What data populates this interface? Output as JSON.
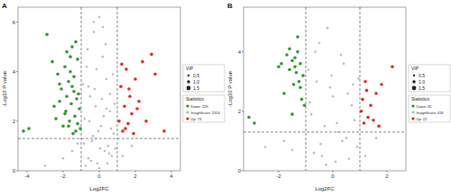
{
  "chart_data": [
    {
      "type": "scatter",
      "panel": "A",
      "x_label": "Log2FC",
      "y_label": "-Log10 P value",
      "grid": false,
      "xlim": [
        -4.5,
        4.5
      ],
      "ylim": [
        0,
        6.6
      ],
      "xticks": [
        -4,
        -2,
        0,
        2,
        4
      ],
      "yticks": [
        0,
        2,
        4,
        6
      ],
      "cutoff_lines": {
        "x": [
          -1,
          1
        ],
        "y": [
          1.3
        ]
      },
      "vip_legend": {
        "title": "VIP",
        "values": [
          0.5,
          {
            "value": 1,
            "label": "1.0"
          },
          1.5
        ]
      },
      "legend_title": "Statistics",
      "series": [
        {
          "name": "Down: 229",
          "color": "#1e8a1e",
          "x": [
            -4.2,
            -3.9,
            -2.9,
            -2.6,
            -2.4,
            -2.3,
            -2.2,
            -2.1,
            -2.0,
            -1.9,
            -1.85,
            -1.8,
            -1.7,
            -1.65,
            -1.6,
            -1.55,
            -1.5,
            -1.45,
            -1.4,
            -1.35,
            -1.3,
            -1.25,
            -1.2,
            -1.15,
            -1.1,
            -1.05,
            -1.8,
            -1.6,
            -1.4,
            -2.5,
            -1.3,
            -1.9,
            -1.2,
            -1.7,
            -2.2,
            -1.5
          ],
          "values": [
            1.6,
            1.7,
            5.5,
            4.4,
            2.1,
            3.9,
            2.8,
            3.3,
            1.8,
            4.2,
            2.4,
            3.0,
            3.6,
            2.0,
            4.0,
            2.7,
            3.4,
            1.5,
            3.8,
            2.2,
            5.2,
            2.9,
            1.9,
            3.1,
            2.5,
            1.7,
            4.8,
            4.6,
            3.2,
            2.6,
            1.6,
            2.3,
            4.5,
            1.8,
            3.5,
            5.0
          ]
        },
        {
          "name": "Insignificant: 2314",
          "color": "#b5b5b5",
          "x": [
            -0.9,
            -0.8,
            -0.7,
            -0.6,
            -0.5,
            -0.4,
            -0.3,
            -0.2,
            -0.1,
            0,
            0.1,
            0.2,
            0.3,
            0.4,
            0.5,
            0.6,
            0.7,
            0.8,
            0.9,
            -0.85,
            -0.65,
            -0.45,
            -0.25,
            -0.05,
            0.15,
            0.35,
            0.55,
            0.75,
            -0.75,
            -0.55,
            -0.35,
            -0.15,
            0.05,
            0.25,
            0.45,
            0.65,
            0.85,
            -1.5,
            -2.0,
            -1.2,
            1.3,
            1.8,
            -3.0,
            -0.3,
            0.2,
            0.6,
            -0.6,
            0.0,
            0.4,
            -0.2
          ],
          "values": [
            3.5,
            2.1,
            4.2,
            0.5,
            3.0,
            1.2,
            5.6,
            2.6,
            0.3,
            6.2,
            1.8,
            4.6,
            0.8,
            3.7,
            1.0,
            2.4,
            0.6,
            1.5,
            0.9,
            1.1,
            4.9,
            0.4,
            3.3,
            1.6,
            2.9,
            5.1,
            0.7,
            3.9,
            0.2,
            2.0,
            1.4,
            4.1,
            0.9,
            2.2,
            0.3,
            1.7,
            2.7,
            0.8,
            0.5,
            1.1,
            0.6,
            1.0,
            0.2,
            6.0,
            5.8,
            3.1,
            3.4,
            0.1,
            2.5,
            1.3
          ]
        },
        {
          "name": "Up: 73",
          "color": "#e01010",
          "x": [
            1.1,
            1.2,
            1.3,
            1.4,
            1.5,
            1.6,
            1.7,
            1.8,
            1.9,
            2.0,
            2.2,
            2.4,
            2.6,
            2.9,
            3.1,
            1.25,
            1.45,
            1.65,
            2.1,
            3.6
          ],
          "values": [
            2.0,
            3.4,
            1.6,
            2.6,
            4.1,
            1.9,
            3.0,
            2.3,
            1.5,
            3.7,
            2.8,
            4.4,
            2.0,
            4.7,
            3.9,
            4.3,
            1.7,
            3.3,
            2.5,
            1.6
          ]
        }
      ]
    },
    {
      "type": "scatter",
      "panel": "B",
      "x_label": "Log2FC",
      "y_label": "-Log10 P value",
      "grid": false,
      "xlim": [
        -3.3,
        2.7
      ],
      "ylim": [
        0,
        5.5
      ],
      "xticks": [
        -2,
        0,
        2
      ],
      "yticks": [
        0,
        2,
        4
      ],
      "cutoff_lines": {
        "x": [
          -1,
          1
        ],
        "y": [
          1.3
        ]
      },
      "vip_legend": {
        "title": "VIP",
        "values": [
          0.5,
          {
            "value": 1,
            "label": "1.0"
          },
          1.5
        ]
      },
      "legend_title": "Statistics",
      "series": [
        {
          "name": "Down: 45",
          "color": "#1e8a1e",
          "x": [
            -3.1,
            -2.9,
            -2.0,
            -1.9,
            -1.8,
            -1.7,
            -1.6,
            -1.5,
            -1.45,
            -1.4,
            -1.35,
            -1.3,
            -1.25,
            -1.2,
            -1.15,
            -1.1,
            -1.05,
            -1.5,
            -1.3,
            -1.2,
            -1.6,
            -1.4
          ],
          "values": [
            1.8,
            1.6,
            3.5,
            3.6,
            2.6,
            3.9,
            4.1,
            3.7,
            2.9,
            3.8,
            3.3,
            4.5,
            3.0,
            3.6,
            2.4,
            3.2,
            2.2,
            1.9,
            4.0,
            2.8,
            3.4,
            3.5
          ]
        },
        {
          "name": "Insignificant: 418",
          "color": "#b5b5b5",
          "x": [
            -0.9,
            -0.7,
            -0.5,
            -0.3,
            -0.1,
            0.1,
            0.3,
            0.5,
            0.7,
            0.9,
            -0.8,
            -0.6,
            -0.4,
            -0.2,
            0,
            0.2,
            0.4,
            0.6,
            0.8,
            -0.85,
            -0.45,
            -0.05,
            0.35,
            0.75,
            -0.65,
            -0.25,
            0.15,
            0.55,
            -1.5,
            -1.8,
            1.2,
            1.6,
            -2.5,
            0.95
          ],
          "values": [
            3.4,
            0.6,
            4.3,
            1.5,
            2.8,
            0.3,
            3.9,
            1.1,
            2.2,
            0.8,
            1.9,
            3.0,
            0.5,
            4.8,
            2.5,
            1.3,
            3.6,
            0.4,
            1.7,
            2.3,
            0.9,
            3.2,
            1.0,
            2.9,
            4.0,
            0.2,
            1.6,
            2.6,
            0.7,
            1.0,
            0.5,
            1.1,
            0.8,
            3.1
          ]
        },
        {
          "name": "Up: 22",
          "color": "#e01010",
          "x": [
            1.05,
            1.1,
            1.15,
            1.2,
            1.3,
            1.4,
            1.5,
            1.6,
            1.7,
            1.8,
            2.2,
            1.25
          ],
          "values": [
            2.0,
            2.4,
            1.6,
            3.0,
            1.8,
            2.2,
            1.7,
            2.6,
            1.5,
            2.9,
            3.5,
            2.7
          ]
        }
      ]
    }
  ]
}
